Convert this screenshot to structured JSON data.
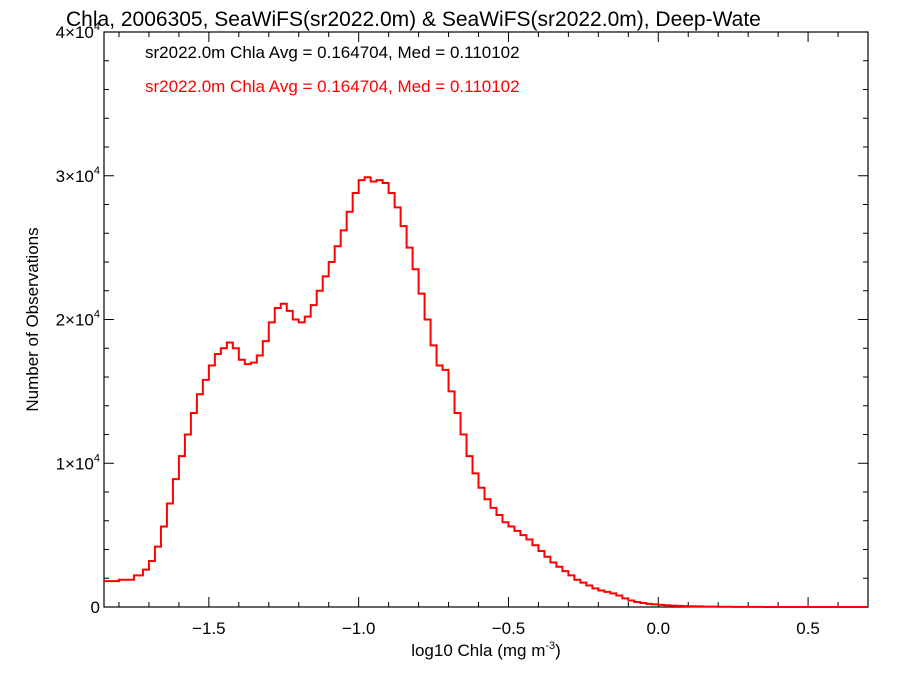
{
  "chart_data": {
    "type": "line",
    "style": "step",
    "title": "Chla, 2006305, SeaWiFS(sr2022.0m) & SeaWiFS(sr2022.0m), Deep-Wate",
    "xlabel": "log10 Chla (mg m",
    "xlabel_sup": "-3",
    "xlabel_end": ")",
    "ylabel": "Number of Observations",
    "xlim": [
      -1.85,
      0.7
    ],
    "ylim": [
      0,
      40000
    ],
    "x_ticks": [
      {
        "value": -1.5,
        "label": "−1.5"
      },
      {
        "value": -1.0,
        "label": "−1.0"
      },
      {
        "value": -0.5,
        "label": "−0.5"
      },
      {
        "value": 0.0,
        "label": "0.0"
      },
      {
        "value": 0.5,
        "label": "0.5"
      }
    ],
    "y_ticks": [
      {
        "value": 0,
        "label": "0",
        "sup": ""
      },
      {
        "value": 10000,
        "label": "1×10",
        "sup": "4"
      },
      {
        "value": 20000,
        "label": "2×10",
        "sup": "4"
      },
      {
        "value": 30000,
        "label": "3×10",
        "sup": "4"
      },
      {
        "value": 40000,
        "label": "4×10",
        "sup": "4"
      }
    ],
    "grid": false,
    "annotations": [
      {
        "text": "sr2022.0m Chla Avg = 0.164704, Med = 0.110102",
        "color": "#000000"
      },
      {
        "text": "sr2022.0m Chla Avg = 0.164704, Med = 0.110102",
        "color": "#ff0000"
      }
    ],
    "series": [
      {
        "color": "#ff0000",
        "x": [
          -1.85,
          -1.8,
          -1.75,
          -1.72,
          -1.7,
          -1.68,
          -1.66,
          -1.64,
          -1.62,
          -1.6,
          -1.58,
          -1.56,
          -1.54,
          -1.52,
          -1.5,
          -1.48,
          -1.46,
          -1.44,
          -1.42,
          -1.4,
          -1.38,
          -1.36,
          -1.34,
          -1.32,
          -1.3,
          -1.28,
          -1.26,
          -1.24,
          -1.22,
          -1.2,
          -1.18,
          -1.16,
          -1.14,
          -1.12,
          -1.1,
          -1.08,
          -1.06,
          -1.04,
          -1.02,
          -1.0,
          -0.98,
          -0.96,
          -0.94,
          -0.92,
          -0.9,
          -0.88,
          -0.86,
          -0.84,
          -0.82,
          -0.8,
          -0.78,
          -0.76,
          -0.74,
          -0.72,
          -0.7,
          -0.68,
          -0.66,
          -0.64,
          -0.62,
          -0.6,
          -0.58,
          -0.56,
          -0.54,
          -0.52,
          -0.5,
          -0.48,
          -0.46,
          -0.44,
          -0.42,
          -0.4,
          -0.38,
          -0.36,
          -0.34,
          -0.32,
          -0.3,
          -0.28,
          -0.26,
          -0.24,
          -0.22,
          -0.2,
          -0.18,
          -0.16,
          -0.14,
          -0.12,
          -0.1,
          -0.08,
          -0.06,
          -0.04,
          -0.02,
          0.0,
          0.02,
          0.04,
          0.06,
          0.08,
          0.1,
          0.12,
          0.15,
          0.2,
          0.25,
          0.3,
          0.35,
          0.4,
          0.5,
          0.6,
          0.7
        ],
        "y": [
          1800,
          1900,
          2200,
          2600,
          3200,
          4200,
          5600,
          7200,
          8900,
          10500,
          12000,
          13500,
          14800,
          15800,
          16800,
          17600,
          18000,
          18400,
          18000,
          17200,
          16900,
          17000,
          17500,
          18500,
          19800,
          20800,
          21100,
          20600,
          20000,
          19800,
          20200,
          21000,
          22000,
          23000,
          24000,
          25100,
          26200,
          27500,
          28800,
          29700,
          29900,
          29600,
          29700,
          29500,
          28800,
          27800,
          26500,
          25000,
          23500,
          21800,
          20000,
          18200,
          16800,
          16500,
          15000,
          13500,
          12000,
          10500,
          9300,
          8300,
          7500,
          6900,
          6400,
          5900,
          5600,
          5300,
          5000,
          4700,
          4300,
          3900,
          3500,
          3100,
          2800,
          2500,
          2200,
          1900,
          1700,
          1500,
          1300,
          1150,
          1050,
          950,
          800,
          600,
          450,
          350,
          280,
          220,
          180,
          150,
          120,
          100,
          80,
          60,
          50,
          40,
          30,
          20,
          10,
          5,
          3,
          2,
          1,
          0,
          0
        ]
      }
    ]
  }
}
